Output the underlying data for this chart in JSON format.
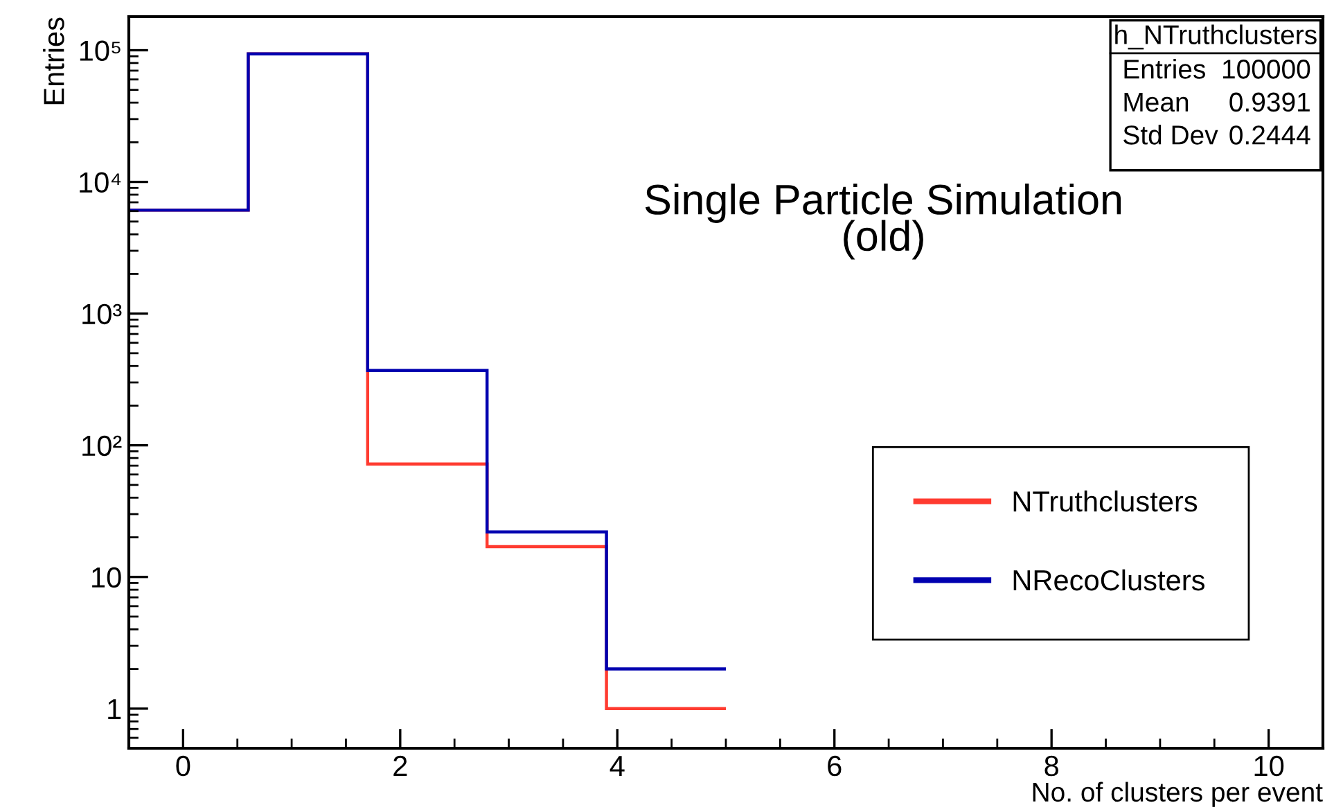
{
  "chart_data": {
    "type": "histogram",
    "xlabel": "No. of clusters per event",
    "ylabel": "Entries",
    "bins": [
      -0.5,
      0.6,
      1.7,
      2.8,
      3.9,
      5.0
    ],
    "series": [
      {
        "name": "NTruthclusters",
        "color": "#ff3b30",
        "values": [
          6100,
          93800,
          72,
          17,
          1
        ]
      },
      {
        "name": "NRecoClusters",
        "color": "#0000b0",
        "values": [
          6100,
          93800,
          370,
          22,
          2
        ]
      }
    ],
    "log": "y",
    "xlim": [
      -0.5,
      10.5
    ],
    "ylim": [
      0.5,
      180000
    ],
    "xticks": [
      0,
      2,
      4,
      6,
      8,
      10
    ],
    "yticks": [
      1,
      10,
      {
        "value": 100,
        "label": "10²"
      },
      {
        "value": 1000,
        "label": "10³"
      },
      {
        "value": 10000,
        "label": "10⁴"
      },
      {
        "value": 100000,
        "label": "10⁵"
      }
    ],
    "legend": "right",
    "grid": false,
    "annotations": [
      "Single Particle Simulation\n(old)",
      "h_NTruthclusters",
      "Entries",
      "100000",
      "Mean",
      "0.9391",
      "Std Dev",
      "0.2444"
    ]
  }
}
